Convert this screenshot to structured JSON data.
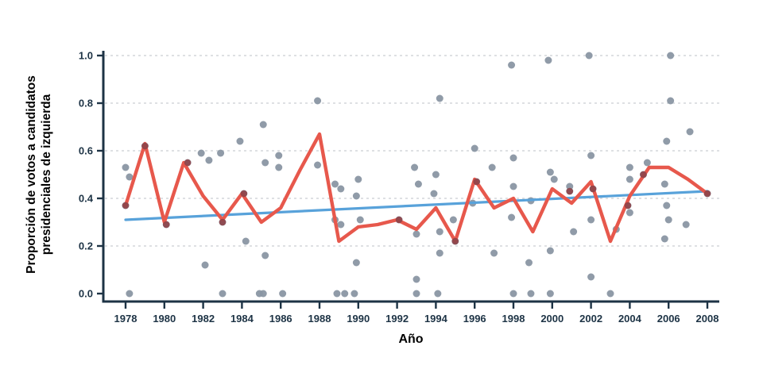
{
  "chart_data": {
    "type": "scatter",
    "title": "",
    "xlabel": "Año",
    "ylabel": "Proporción de votos a candidatos presidenciales de izquierda",
    "ylabel_lines": [
      "Proporción de votos a candidatos",
      "presidenciales de izquierda"
    ],
    "xlim": [
      1976.8,
      2008.7
    ],
    "ylim": [
      0,
      1
    ],
    "x_ticks": [
      1978,
      1980,
      1982,
      1984,
      1986,
      1988,
      1990,
      1992,
      1994,
      1996,
      1998,
      2000,
      2002,
      2004,
      2006,
      2008
    ],
    "y_ticks": [
      0.0,
      0.2,
      0.4,
      0.6,
      0.8,
      1.0
    ],
    "grid": "horizontal-dashed",
    "legend": "none",
    "colors": {
      "axis": "#1d3345",
      "text": "#1d3345",
      "grid": "#c9cdd2",
      "scatter": "#8a96a3",
      "mean_line": "#e7584c",
      "scatter_on_line": "#8e4449",
      "trend_line": "#58a2da",
      "background": "#ffffff"
    },
    "mean_line": {
      "name": "yearly-mean",
      "years": [
        1978,
        1979,
        1980,
        1981,
        1982,
        1983,
        1984,
        1985,
        1986,
        1987,
        1988,
        1989,
        1990,
        1991,
        1992,
        1993,
        1994,
        1995,
        1996,
        1997,
        1998,
        1999,
        2000,
        2001,
        2002,
        2003,
        2004,
        2005,
        2006,
        2007,
        2008
      ],
      "values": [
        0.37,
        0.63,
        0.3,
        0.55,
        0.41,
        0.31,
        0.42,
        0.3,
        0.36,
        0.52,
        0.67,
        0.22,
        0.28,
        0.29,
        0.31,
        0.27,
        0.36,
        0.22,
        0.48,
        0.36,
        0.4,
        0.26,
        0.44,
        0.38,
        0.47,
        0.22,
        0.41,
        0.53,
        0.53,
        0.48,
        0.42
      ]
    },
    "trend_line": {
      "name": "linear-trend",
      "x": [
        1978,
        2008
      ],
      "y": [
        0.31,
        0.43
      ]
    },
    "points": [
      [
        1978.0,
        0.53,
        0
      ],
      [
        1978.2,
        0.49,
        0
      ],
      [
        1978.0,
        0.37,
        1
      ],
      [
        1978.2,
        0.0,
        0
      ],
      [
        1979.0,
        0.62,
        1
      ],
      [
        1980.1,
        0.29,
        1
      ],
      [
        1981.2,
        0.55,
        1
      ],
      [
        1981.9,
        0.59,
        0
      ],
      [
        1982.3,
        0.56,
        0
      ],
      [
        1982.1,
        0.12,
        0
      ],
      [
        1982.9,
        0.59,
        0
      ],
      [
        1983.0,
        0.0,
        0
      ],
      [
        1983.0,
        0.3,
        1
      ],
      [
        1983.9,
        0.64,
        0
      ],
      [
        1984.1,
        0.42,
        1
      ],
      [
        1984.2,
        0.22,
        0
      ],
      [
        1984.9,
        0.0,
        0
      ],
      [
        1985.1,
        0.71,
        0
      ],
      [
        1985.2,
        0.16,
        0
      ],
      [
        1985.1,
        0.0,
        0
      ],
      [
        1985.2,
        0.55,
        0
      ],
      [
        1985.9,
        0.58,
        0
      ],
      [
        1985.9,
        0.53,
        0
      ],
      [
        1986.1,
        0.0,
        0
      ],
      [
        1987.9,
        0.81,
        0
      ],
      [
        1987.9,
        0.54,
        0
      ],
      [
        1988.8,
        0.46,
        0
      ],
      [
        1989.1,
        0.44,
        0
      ],
      [
        1988.8,
        0.31,
        0
      ],
      [
        1989.1,
        0.29,
        0
      ],
      [
        1988.9,
        0.0,
        0
      ],
      [
        1989.3,
        0.0,
        0
      ],
      [
        1989.8,
        0.0,
        0
      ],
      [
        1989.9,
        0.13,
        0
      ],
      [
        1989.9,
        0.41,
        0
      ],
      [
        1990.0,
        0.48,
        0
      ],
      [
        1990.1,
        0.31,
        0
      ],
      [
        1992.1,
        0.31,
        1
      ],
      [
        1992.9,
        0.53,
        0
      ],
      [
        1993.0,
        0.25,
        0
      ],
      [
        1993.0,
        0.06,
        0
      ],
      [
        1993.0,
        0.0,
        0
      ],
      [
        1993.1,
        0.46,
        0
      ],
      [
        1993.9,
        0.42,
        0
      ],
      [
        1994.0,
        0.5,
        0
      ],
      [
        1994.1,
        0.0,
        0
      ],
      [
        1994.2,
        0.26,
        0
      ],
      [
        1994.2,
        0.17,
        0
      ],
      [
        1994.2,
        0.82,
        0
      ],
      [
        1994.9,
        0.31,
        0
      ],
      [
        1995.0,
        0.22,
        1
      ],
      [
        1995.9,
        0.38,
        0
      ],
      [
        1996.0,
        0.61,
        0
      ],
      [
        1996.1,
        0.47,
        1
      ],
      [
        1996.9,
        0.53,
        0
      ],
      [
        1997.0,
        0.17,
        0
      ],
      [
        1997.9,
        0.32,
        0
      ],
      [
        1998.0,
        0.57,
        0
      ],
      [
        1997.9,
        0.96,
        0
      ],
      [
        1998.0,
        0.0,
        0
      ],
      [
        1998.0,
        0.45,
        0
      ],
      [
        1998.8,
        0.13,
        0
      ],
      [
        1998.9,
        0.39,
        0
      ],
      [
        1998.9,
        0.0,
        0
      ],
      [
        1999.8,
        0.98,
        0
      ],
      [
        1999.9,
        0.18,
        0
      ],
      [
        1999.9,
        0.51,
        0
      ],
      [
        1999.9,
        0.0,
        0
      ],
      [
        2000.1,
        0.48,
        0
      ],
      [
        2000.9,
        0.45,
        0
      ],
      [
        2000.9,
        0.43,
        1
      ],
      [
        2001.1,
        0.26,
        0
      ],
      [
        2001.9,
        1.0,
        0
      ],
      [
        2002.0,
        0.58,
        0
      ],
      [
        2002.1,
        0.44,
        1
      ],
      [
        2002.0,
        0.31,
        0
      ],
      [
        2002.0,
        0.07,
        0
      ],
      [
        2003.0,
        0.0,
        0
      ],
      [
        2003.3,
        0.27,
        0
      ],
      [
        2003.9,
        0.37,
        1
      ],
      [
        2004.0,
        0.53,
        0
      ],
      [
        2004.0,
        0.48,
        0
      ],
      [
        2004.0,
        0.34,
        0
      ],
      [
        2004.7,
        0.5,
        1
      ],
      [
        2004.9,
        0.55,
        0
      ],
      [
        2005.8,
        0.46,
        0
      ],
      [
        2005.9,
        0.37,
        0
      ],
      [
        2005.9,
        0.64,
        0
      ],
      [
        2006.0,
        0.31,
        0
      ],
      [
        2006.1,
        1.0,
        0
      ],
      [
        2006.1,
        0.81,
        0
      ],
      [
        2005.8,
        0.23,
        0
      ],
      [
        2006.9,
        0.29,
        0
      ],
      [
        2007.1,
        0.68,
        0
      ],
      [
        2008.0,
        0.42,
        1
      ]
    ]
  }
}
